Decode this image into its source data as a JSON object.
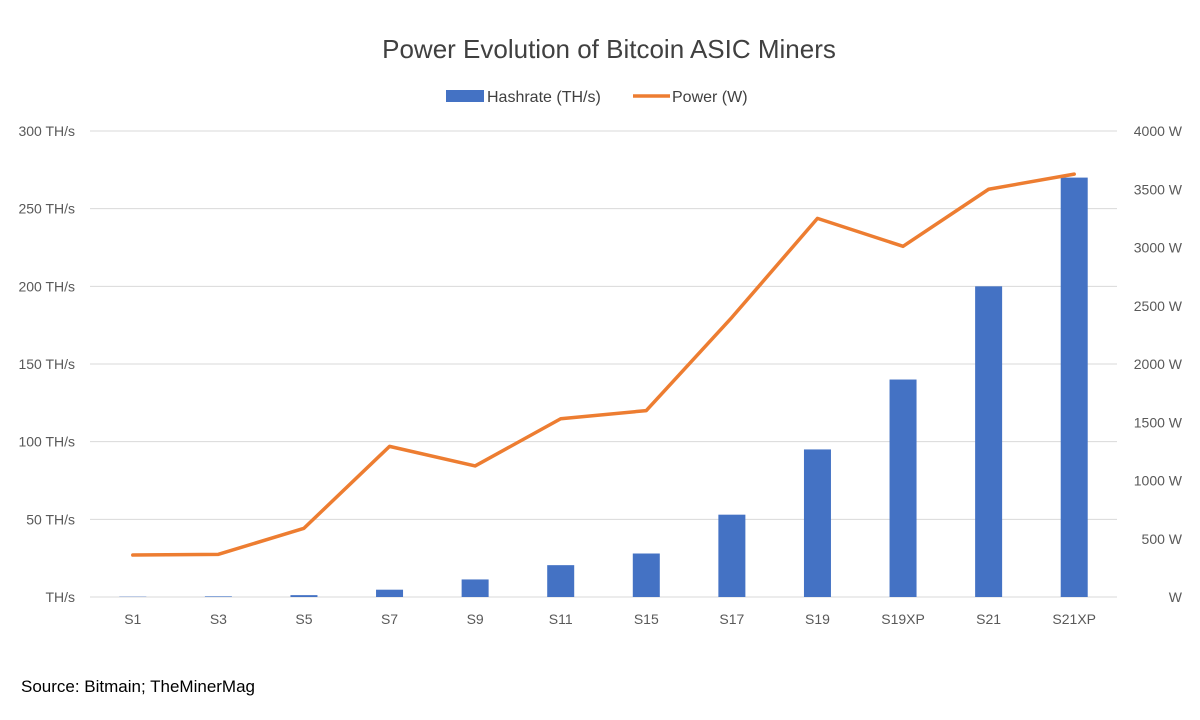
{
  "chart_data": {
    "type": "bar+line",
    "title": "Power Evolution of Bitcoin ASIC Miners",
    "categories": [
      "S1",
      "S3",
      "S5",
      "S7",
      "S9",
      "S11",
      "S15",
      "S17",
      "S19",
      "S19XP",
      "S21",
      "S21XP"
    ],
    "series": [
      {
        "name": "Hashrate (TH/s)",
        "type": "bar",
        "axis": "left",
        "color": "#4472C4",
        "values": [
          0.2,
          0.4,
          1.2,
          4.7,
          11.3,
          20.5,
          28,
          53,
          95,
          140,
          200,
          270
        ]
      },
      {
        "name": "Power (W)",
        "type": "line",
        "axis": "right",
        "color": "#ED7D31",
        "values": [
          360,
          366,
          590,
          1293,
          1125,
          1530,
          1600,
          2400,
          3250,
          3010,
          3500,
          3630
        ]
      }
    ],
    "y_left": {
      "ylim": [
        0,
        300
      ],
      "ticks": [
        0,
        50,
        100,
        150,
        200,
        250,
        300
      ],
      "tick_labels": [
        "TH/s",
        "50 TH/s",
        "100 TH/s",
        "150 TH/s",
        "200 TH/s",
        "250 TH/s",
        "300 TH/s"
      ]
    },
    "y_right": {
      "ylim": [
        0,
        4000
      ],
      "ticks": [
        0,
        500,
        1000,
        1500,
        2000,
        2500,
        3000,
        3500,
        4000
      ],
      "tick_labels": [
        "W",
        "500 W",
        "1000 W",
        "1500 W",
        "2000 W",
        "2500 W",
        "3000 W",
        "3500 W",
        "4000 W"
      ]
    },
    "grid": true,
    "legend_position": "top-center"
  },
  "source": "Source: Bitmain; TheMinerMag"
}
